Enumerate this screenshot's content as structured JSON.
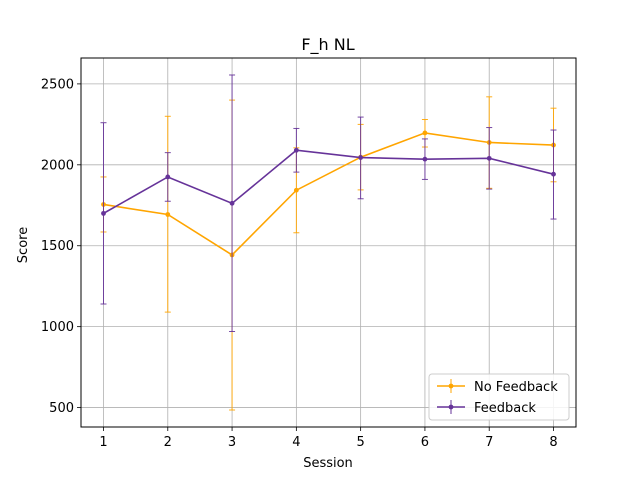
{
  "chart_data": {
    "type": "line",
    "title": "F_h NL",
    "xlabel": "Session",
    "ylabel": "Score",
    "x": [
      1,
      2,
      3,
      4,
      5,
      6,
      7,
      8
    ],
    "xlim": [
      0.65,
      8.35
    ],
    "ylim": [
      380,
      2660
    ],
    "yticks": [
      500,
      1000,
      1500,
      2000,
      2500
    ],
    "grid": true,
    "legend_position": "lower-right",
    "series": [
      {
        "name": "No Feedback",
        "color": "#ffa500",
        "values": [
          1755,
          1693,
          1443,
          1843,
          2047,
          2197,
          2138,
          2122
        ],
        "err_low": [
          1585,
          1090,
          485,
          1580,
          1845,
          2110,
          1855,
          1895
        ],
        "err_high": [
          1925,
          2300,
          2400,
          2105,
          2250,
          2280,
          2420,
          2350
        ]
      },
      {
        "name": "Feedback",
        "color": "#663399",
        "values": [
          1700,
          1925,
          1762,
          2090,
          2045,
          2035,
          2040,
          1942
        ],
        "err_low": [
          1140,
          1775,
          970,
          1955,
          1790,
          1910,
          1850,
          1665
        ],
        "err_high": [
          2260,
          2075,
          2555,
          2225,
          2295,
          2160,
          2230,
          2215
        ]
      }
    ]
  }
}
